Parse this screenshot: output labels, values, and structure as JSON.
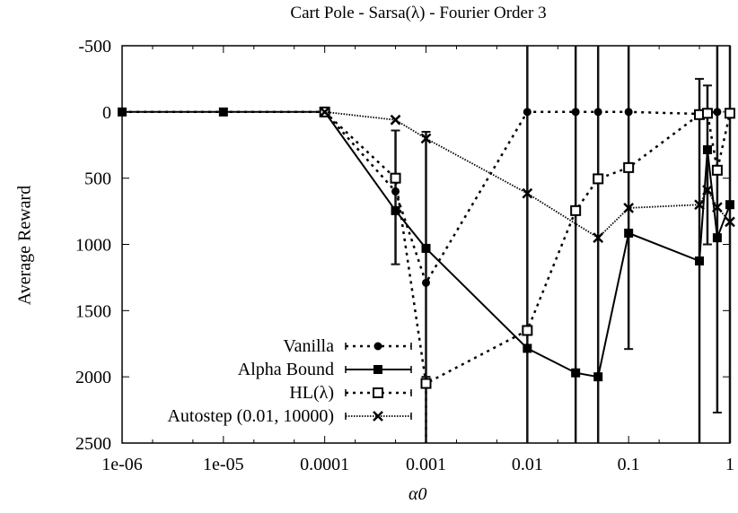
{
  "chart_data": {
    "type": "line",
    "title": "Cart Pole - Sarsa(λ) - Fourier Order 3",
    "xlabel": "α0",
    "ylabel": "Average Reward",
    "xscale": "log",
    "xlim": [
      1e-06,
      1
    ],
    "ylim": [
      -500,
      2500
    ],
    "y_inverted": true,
    "x_ticks": [
      "1e-06",
      "1e-05",
      "0.0001",
      "0.001",
      "0.01",
      "0.1",
      "1"
    ],
    "y_ticks": [
      "-500",
      "0",
      "500",
      "1000",
      "1500",
      "2000",
      "2500"
    ],
    "legend_position": "lower-left",
    "grid": false,
    "series": [
      {
        "name": "Vanilla",
        "style": "dotted",
        "marker": "circle",
        "x": [
          1e-06,
          1e-05,
          0.0001,
          0.0005,
          0.001,
          0.01,
          0.03,
          0.05,
          0.1,
          0.5,
          0.75
        ],
        "values": [
          0,
          0,
          0,
          600,
          1290,
          0,
          0,
          0,
          0,
          15,
          0
        ]
      },
      {
        "name": "Alpha Bound",
        "style": "solid",
        "marker": "filled-square",
        "x": [
          1e-06,
          1e-05,
          0.0001,
          0.0005,
          0.001,
          0.01,
          0.03,
          0.05,
          0.1,
          0.5,
          0.6,
          0.75,
          1
        ],
        "values": [
          0,
          0,
          0,
          745,
          1030,
          1785,
          1970,
          2000,
          915,
          1125,
          285,
          950,
          700
        ]
      },
      {
        "name": "HL(λ)",
        "style": "dotted",
        "marker": "hollow-square",
        "x": [
          0.0001,
          0.0005,
          0.001,
          0.01,
          0.03,
          0.05,
          0.1,
          0.5,
          0.6,
          0.75,
          1
        ],
        "values": [
          0,
          500,
          2050,
          1650,
          745,
          505,
          420,
          20,
          10,
          440,
          10
        ]
      },
      {
        "name": "Autostep (0.01, 10000)",
        "style": "fine-dotted",
        "marker": "x",
        "x": [
          0.0001,
          0.0005,
          0.001,
          0.01,
          0.05,
          0.1,
          0.5,
          0.6,
          0.75,
          1
        ],
        "values": [
          0,
          60,
          200,
          615,
          950,
          725,
          700,
          590,
          720,
          830
        ]
      }
    ]
  }
}
